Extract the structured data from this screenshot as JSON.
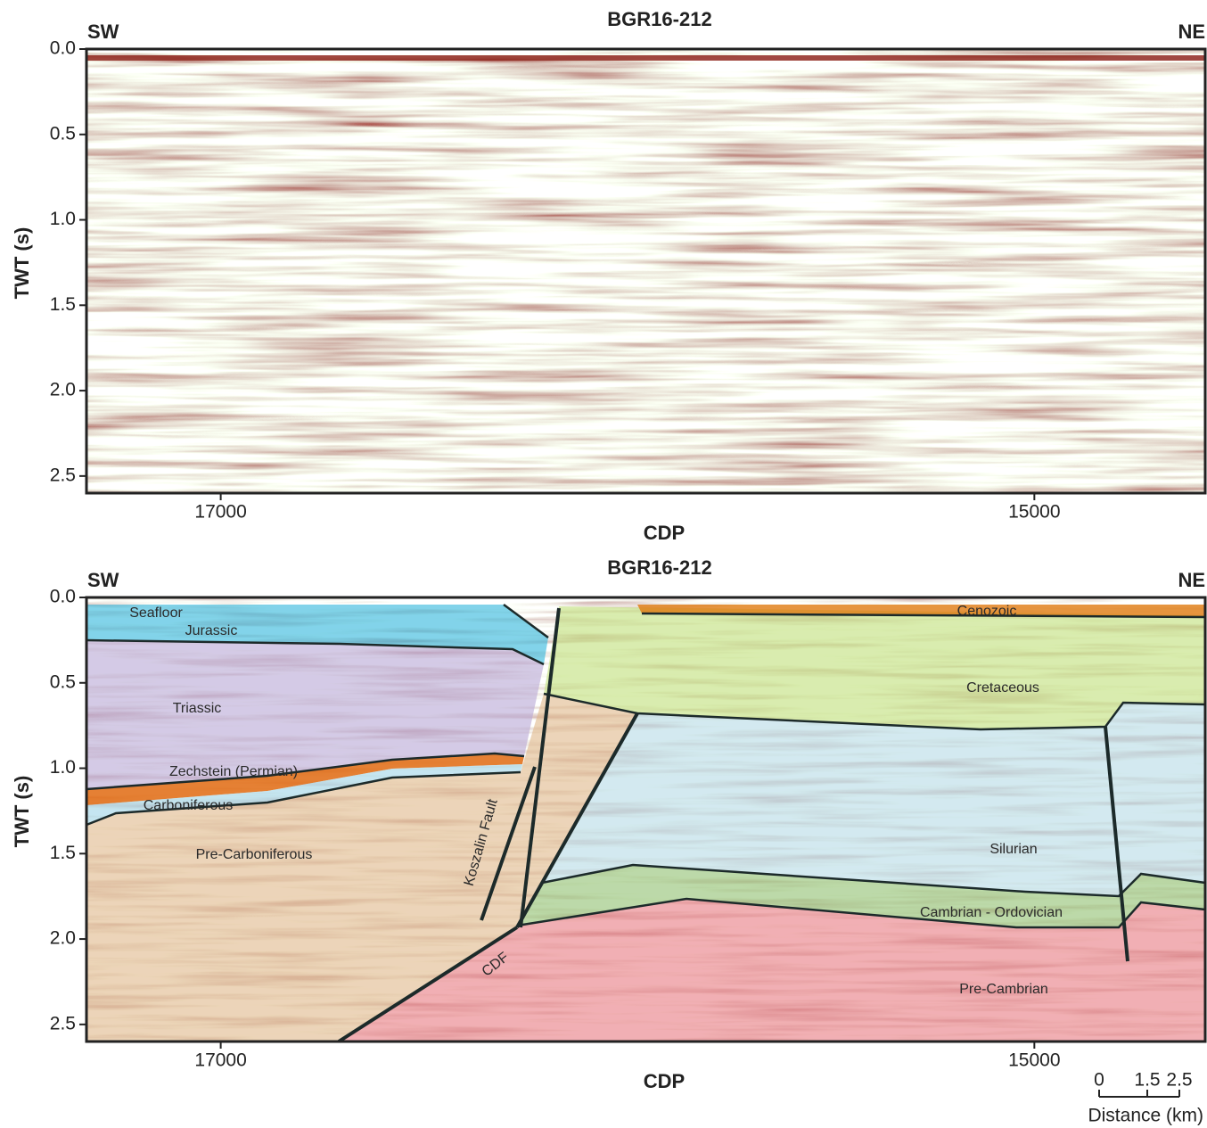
{
  "panels": [
    {
      "title": "BGR16-212",
      "left_label": "SW",
      "right_label": "NE",
      "y_label": "TWT (s)",
      "x_label": "CDP",
      "xlim": [
        17330,
        14580
      ],
      "xticks": [
        17000,
        15000
      ],
      "ylim": [
        0,
        2.6
      ],
      "yticks": [
        {
          "value": 0,
          "label": "0.0"
        },
        0.5,
        {
          "value": 1,
          "label": "1.0"
        },
        1.5,
        {
          "value": 2,
          "label": "2.0"
        },
        2.5
      ]
    },
    {
      "title": "BGR16-212",
      "left_label": "SW",
      "right_label": "NE",
      "y_label": "TWT (s)",
      "x_label": "CDP",
      "xlim": [
        17330,
        14580
      ],
      "xticks": [
        17000,
        15000
      ],
      "ylim": [
        0,
        2.6
      ],
      "yticks": [
        {
          "value": 0,
          "label": "0.0"
        },
        0.5,
        {
          "value": 1,
          "label": "1.0"
        },
        1.5,
        {
          "value": 2,
          "label": "2.0"
        },
        2.5
      ],
      "units": [
        "Seafloor",
        "Jurassic",
        "Triassic",
        "Zechstein (Permian)",
        "Carboniferous",
        "Pre-Carboniferous",
        "Cenozoic",
        "Cretaceous",
        "Silurian",
        "Cambrian - Ordovician",
        "Pre-Cambrian"
      ],
      "faults": [
        "Koszalin Fault",
        "CDF"
      ]
    }
  ],
  "scale_bar": {
    "ticks": [
      0,
      1.5,
      2.5
    ],
    "label": "Distance (km)"
  }
}
